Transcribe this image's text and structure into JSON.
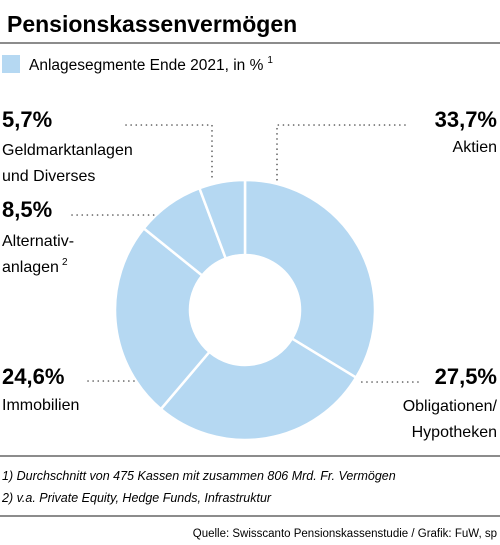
{
  "title": "Pensionskassenvermögen",
  "legend": {
    "label": "Anlagesegmente Ende 2021, in %",
    "footnote_ref": "1"
  },
  "colors": {
    "slice": "#b5d8f2",
    "slice_edge": "#ffffff",
    "text": "#1a1a1a",
    "rule": "#1a1a1a",
    "dots": "#555555"
  },
  "chart_data": {
    "type": "pie",
    "donut": true,
    "title": "Pensionskassenvermögen",
    "series_label": "Anlagesegmente Ende 2021, in %",
    "slices": [
      {
        "label": "Aktien",
        "value": 33.7,
        "value_text": "33,7%"
      },
      {
        "label": "Obligationen/ Hypotheken",
        "value": 27.5,
        "value_text": "27,5%"
      },
      {
        "label": "Immobilien",
        "value": 24.6,
        "value_text": "24,6%"
      },
      {
        "label": "Alternativanlagen",
        "value": 8.5,
        "value_text": "8,5%",
        "footnote_ref": "2"
      },
      {
        "label": "Geldmarktanlagen und Diverses",
        "value": 5.7,
        "value_text": "5,7%"
      }
    ]
  },
  "labels": {
    "aktien": {
      "pct": "33,7%",
      "line1": "Aktien"
    },
    "obligationen": {
      "pct": "27,5%",
      "line1": "Obligationen/",
      "line2": "Hypotheken"
    },
    "immobilien": {
      "pct": "24,6%",
      "line1": "Immobilien"
    },
    "alternativ": {
      "pct": "8,5%",
      "line1": "Alternativ-",
      "line2": "anlagen",
      "sup": "2"
    },
    "geldmarkt": {
      "pct": "5,7%",
      "line1": "Geldmarktanlagen",
      "line2": "und Diverses"
    }
  },
  "notes": [
    "1) Durchschnitt von 475 Kassen mit zusammen 806 Mrd. Fr. Vermögen",
    "2) v.a. Private Equity, Hedge Funds, Infrastruktur"
  ],
  "source": "Quelle: Swisscanto Pensionskassenstudie / Grafik: FuW, sp"
}
